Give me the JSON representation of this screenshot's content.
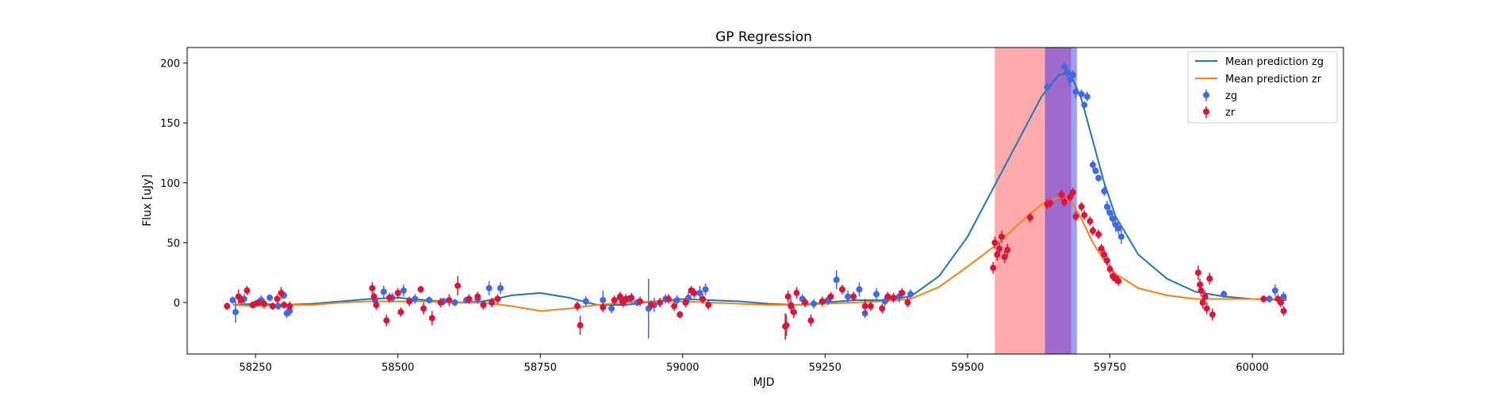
{
  "chart_data": {
    "type": "scatter",
    "title": "GP Regression",
    "xlabel": "MJD",
    "ylabel": "Flux [uJy]",
    "xlim": [
      58130,
      60160
    ],
    "ylim": [
      -43,
      213
    ],
    "xticks": [
      58250,
      58500,
      58750,
      59000,
      59250,
      59500,
      59750,
      60000
    ],
    "yticks": [
      0,
      50,
      100,
      150,
      200
    ],
    "grid": false,
    "legend_position": "top-right",
    "shaded_regions": [
      {
        "x_start": 59548,
        "x_end": 59682,
        "color": "#ff0000",
        "opacity": 0.33
      },
      {
        "x_start": 59636,
        "x_end": 59692,
        "color": "#0000ff",
        "opacity": 0.38
      }
    ],
    "series": [
      {
        "name": "Mean prediction zg",
        "kind": "line",
        "color": "#1f77b4",
        "x": [
          58210,
          58250,
          58300,
          58350,
          58400,
          58450,
          58500,
          58550,
          58600,
          58650,
          58700,
          58750,
          58800,
          58850,
          58900,
          58950,
          59000,
          59050,
          59100,
          59150,
          59200,
          59250,
          59300,
          59350,
          59400,
          59450,
          59500,
          59550,
          59600,
          59630,
          59660,
          59680,
          59700,
          59720,
          59740,
          59760,
          59800,
          59850,
          59900,
          59950,
          60000,
          60060
        ],
        "y": [
          -2,
          -1,
          -2,
          -1,
          1,
          3,
          4,
          2,
          0,
          1,
          6,
          8,
          4,
          -2,
          -2,
          1,
          3,
          2,
          1,
          -1,
          -2,
          0,
          2,
          2,
          5,
          22,
          55,
          100,
          145,
          172,
          190,
          192,
          170,
          135,
          100,
          72,
          40,
          20,
          9,
          5,
          3,
          2
        ]
      },
      {
        "name": "Mean prediction zr",
        "kind": "line",
        "color": "#ff7f0e",
        "x": [
          58210,
          58250,
          58300,
          58350,
          58400,
          58450,
          58500,
          58550,
          58600,
          58650,
          58700,
          58750,
          58800,
          58850,
          58900,
          58950,
          59000,
          59050,
          59100,
          59150,
          59200,
          59250,
          59300,
          59350,
          59400,
          59450,
          59500,
          59550,
          59600,
          59630,
          59660,
          59680,
          59700,
          59720,
          59740,
          59760,
          59800,
          59850,
          59900,
          59950,
          60000,
          60060
        ],
        "y": [
          -2,
          -3,
          -2,
          -2,
          0,
          1,
          1,
          1,
          0,
          0,
          -3,
          -7,
          -5,
          -2,
          0,
          1,
          1,
          0,
          -1,
          -2,
          -2,
          -1,
          0,
          1,
          3,
          13,
          30,
          48,
          70,
          82,
          88,
          86,
          70,
          50,
          35,
          24,
          12,
          6,
          3,
          3,
          3,
          3
        ]
      },
      {
        "name": "zg",
        "kind": "errorbar",
        "color": "#4169e1",
        "x": [
          58210,
          58215,
          58230,
          58250,
          58260,
          58275,
          58290,
          58300,
          58305,
          58310,
          58460,
          58475,
          58490,
          58510,
          58530,
          58555,
          58580,
          58600,
          58620,
          58640,
          58660,
          58680,
          58830,
          58860,
          58875,
          58890,
          58905,
          58920,
          58940,
          58950,
          58970,
          58990,
          59010,
          59030,
          59040,
          59190,
          59210,
          59230,
          59255,
          59270,
          59290,
          59310,
          59320,
          59340,
          59355,
          59380,
          59400,
          59640,
          59670,
          59675,
          59680,
          59685,
          59690,
          59700,
          59705,
          59710,
          59720,
          59725,
          59730,
          59740,
          59745,
          59750,
          59755,
          59760,
          59765,
          59770,
          59950,
          60030,
          60040,
          60055
        ],
        "y": [
          2,
          -8,
          3,
          -1,
          2,
          4,
          -3,
          6,
          -9,
          -7,
          2,
          9,
          4,
          10,
          3,
          2,
          1,
          0,
          2,
          3,
          12,
          12,
          1,
          2,
          -5,
          4,
          3,
          0,
          -5,
          -2,
          3,
          2,
          4,
          8,
          11,
          -2,
          3,
          -1,
          2,
          19,
          5,
          11,
          -9,
          7,
          1,
          5,
          7,
          180,
          197,
          192,
          186,
          190,
          176,
          174,
          165,
          172,
          115,
          110,
          104,
          93,
          80,
          75,
          70,
          65,
          62,
          55,
          7,
          3,
          10,
          5
        ],
        "err": [
          3,
          9,
          4,
          3,
          4,
          3,
          3,
          3,
          4,
          4,
          4,
          5,
          4,
          5,
          4,
          3,
          3,
          3,
          3,
          4,
          6,
          5,
          4,
          8,
          4,
          4,
          3,
          3,
          25,
          6,
          4,
          4,
          5,
          6,
          5,
          4,
          4,
          4,
          4,
          8,
          5,
          6,
          4,
          5,
          4,
          5,
          4,
          3,
          4,
          4,
          5,
          4,
          5,
          4,
          3,
          4,
          4,
          3,
          3,
          4,
          5,
          6,
          5,
          6,
          5,
          6,
          3,
          3,
          5,
          4
        ]
      },
      {
        "name": "zr",
        "kind": "errorbar",
        "color": "#dc143c",
        "x": [
          58200,
          58220,
          58225,
          58235,
          58245,
          58255,
          58265,
          58280,
          58288,
          58295,
          58300,
          58310,
          58455,
          58458,
          58462,
          58480,
          58485,
          58500,
          58505,
          58520,
          58540,
          58545,
          58560,
          58575,
          58590,
          58605,
          58625,
          58640,
          58650,
          58665,
          58675,
          58815,
          58820,
          58860,
          58880,
          58890,
          58895,
          58900,
          58910,
          58925,
          58945,
          58960,
          58975,
          58985,
          58995,
          59005,
          59015,
          59020,
          59035,
          59045,
          59180,
          59182,
          59185,
          59190,
          59195,
          59200,
          59215,
          59225,
          59245,
          59260,
          59280,
          59300,
          59320,
          59330,
          59350,
          59360,
          59370,
          59385,
          59395,
          59545,
          59548,
          59552,
          59556,
          59560,
          59565,
          59570,
          59610,
          59640,
          59645,
          59665,
          59670,
          59680,
          59685,
          59690,
          59700,
          59705,
          59715,
          59720,
          59730,
          59735,
          59740,
          59745,
          59750,
          59755,
          59760,
          59765,
          59905,
          59908,
          59910,
          59913,
          59917,
          59920,
          59925,
          59930,
          60020,
          60045,
          60050,
          60055
        ],
        "y": [
          -3,
          5,
          2,
          10,
          -2,
          0,
          -1,
          -3,
          3,
          8,
          -2,
          -3,
          12,
          5,
          -2,
          -15,
          4,
          8,
          -8,
          1,
          11,
          -5,
          -13,
          0,
          2,
          14,
          3,
          5,
          -2,
          0,
          3,
          -3,
          -19,
          -4,
          2,
          5,
          0,
          3,
          4,
          1,
          -2,
          0,
          3,
          -3,
          -10,
          0,
          10,
          8,
          3,
          -2,
          -20,
          -19,
          5,
          -3,
          -8,
          8,
          0,
          -15,
          1,
          5,
          11,
          5,
          -3,
          -3,
          -5,
          5,
          4,
          8,
          0,
          29,
          50,
          40,
          45,
          55,
          38,
          44,
          71,
          82,
          83,
          90,
          84,
          88,
          92,
          72,
          80,
          73,
          68,
          60,
          57,
          45,
          40,
          35,
          28,
          22,
          20,
          18,
          25,
          15,
          10,
          0,
          5,
          -5,
          20,
          -10,
          3,
          3,
          0,
          -7
        ],
        "err": [
          3,
          6,
          4,
          4,
          3,
          3,
          4,
          3,
          4,
          5,
          3,
          4,
          5,
          4,
          4,
          5,
          4,
          4,
          4,
          4,
          3,
          5,
          6,
          4,
          5,
          8,
          4,
          4,
          4,
          4,
          4,
          4,
          8,
          4,
          4,
          4,
          4,
          4,
          4,
          4,
          4,
          4,
          4,
          4,
          3,
          4,
          4,
          4,
          4,
          4,
          11,
          9,
          5,
          6,
          5,
          5,
          4,
          5,
          4,
          4,
          4,
          4,
          6,
          4,
          4,
          4,
          4,
          4,
          4,
          5,
          5,
          5,
          5,
          5,
          5,
          5,
          4,
          4,
          4,
          4,
          4,
          4,
          4,
          4,
          4,
          4,
          4,
          4,
          4,
          4,
          4,
          4,
          4,
          4,
          4,
          4,
          6,
          5,
          5,
          5,
          5,
          5,
          5,
          5,
          3,
          4,
          4,
          4
        ]
      }
    ]
  }
}
